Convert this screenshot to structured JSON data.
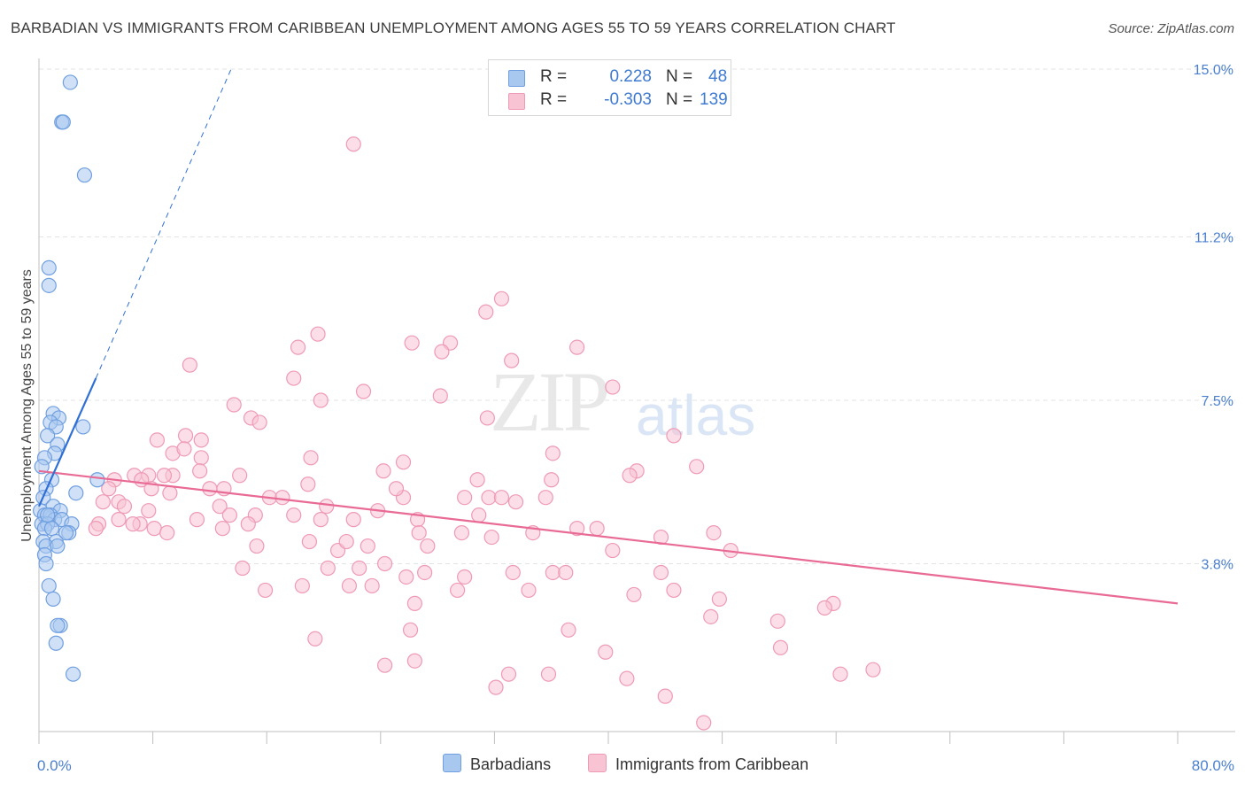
{
  "title": "BARBADIAN VS IMMIGRANTS FROM CARIBBEAN UNEMPLOYMENT AMONG AGES 55 TO 59 YEARS CORRELATION CHART",
  "source": "Source: ZipAtlas.com",
  "watermark": {
    "zip": "ZIP",
    "atlas": "atlas"
  },
  "legend": {
    "r_label": "R =",
    "n_label": "N =",
    "series": [
      {
        "r": "0.228",
        "n": "48"
      },
      {
        "r": "-0.303",
        "n": "139"
      }
    ]
  },
  "colors": {
    "barbadians_fill": "#a9c8f0",
    "barbadians_stroke": "#6f9fe0",
    "barbadians_line": "#2f6fd6",
    "caribbean_fill": "#f8c3d3",
    "caribbean_stroke": "#ef9ab5",
    "caribbean_line": "#e86a95",
    "tick": "#4a7fd0",
    "grid": "#e3e3e3"
  },
  "chart_data": {
    "type": "scatter",
    "title": "BARBADIAN VS IMMIGRANTS FROM CARIBBEAN UNEMPLOYMENT AMONG AGES 55 TO 59 YEARS CORRELATION CHART",
    "xlabel": "",
    "ylabel": "Unemployment Among Ages 55 to 59 years",
    "xlim": [
      0,
      80
    ],
    "ylim": [
      0,
      15
    ],
    "x_tick_labels": [
      "0.0%",
      "80.0%"
    ],
    "y_ticks": [
      3.8,
      7.5,
      11.2,
      15.0
    ],
    "y_tick_labels": [
      "3.8%",
      "7.5%",
      "11.2%",
      "15.0%"
    ],
    "grid": true,
    "legend_position": "top-center",
    "series": [
      {
        "name": "Barbadians",
        "r": 0.228,
        "n": 48,
        "trend": {
          "x": [
            0.0,
            4.0
          ],
          "y": [
            5.1,
            8.0
          ]
        },
        "trend_extension": {
          "x": [
            4.0,
            13.5
          ],
          "y": [
            8.0,
            15.0
          ]
        },
        "points": [
          [
            2.2,
            14.7
          ],
          [
            1.6,
            13.8
          ],
          [
            1.7,
            13.8
          ],
          [
            3.2,
            12.6
          ],
          [
            0.7,
            10.5
          ],
          [
            0.7,
            10.1
          ],
          [
            1.0,
            7.2
          ],
          [
            1.4,
            7.1
          ],
          [
            0.8,
            7.0
          ],
          [
            1.2,
            6.9
          ],
          [
            3.1,
            6.9
          ],
          [
            0.6,
            6.7
          ],
          [
            1.3,
            6.5
          ],
          [
            1.1,
            6.3
          ],
          [
            0.4,
            6.2
          ],
          [
            0.2,
            6.0
          ],
          [
            0.9,
            5.7
          ],
          [
            4.1,
            5.7
          ],
          [
            0.5,
            5.5
          ],
          [
            0.3,
            5.3
          ],
          [
            2.6,
            5.4
          ],
          [
            1.0,
            5.1
          ],
          [
            1.5,
            5.0
          ],
          [
            0.1,
            5.0
          ],
          [
            0.4,
            4.9
          ],
          [
            0.8,
            4.9
          ],
          [
            1.1,
            4.8
          ],
          [
            1.6,
            4.8
          ],
          [
            0.2,
            4.7
          ],
          [
            0.6,
            4.7
          ],
          [
            2.3,
            4.7
          ],
          [
            0.4,
            4.6
          ],
          [
            0.9,
            4.6
          ],
          [
            2.1,
            4.5
          ],
          [
            1.9,
            4.5
          ],
          [
            0.3,
            4.3
          ],
          [
            1.2,
            4.3
          ],
          [
            0.5,
            4.2
          ],
          [
            1.3,
            4.2
          ],
          [
            0.4,
            4.0
          ],
          [
            0.5,
            3.8
          ],
          [
            0.7,
            3.3
          ],
          [
            1.0,
            3.0
          ],
          [
            1.5,
            2.4
          ],
          [
            1.3,
            2.4
          ],
          [
            1.2,
            2.0
          ],
          [
            2.4,
            1.3
          ],
          [
            0.6,
            4.9
          ]
        ]
      },
      {
        "name": "Immigrants from Caribbean",
        "r": -0.303,
        "n": 139,
        "trend": {
          "x": [
            0.0,
            80.0
          ],
          "y": [
            5.9,
            2.9
          ]
        },
        "points": [
          [
            22.1,
            13.3
          ],
          [
            31.4,
            9.5
          ],
          [
            32.5,
            9.8
          ],
          [
            19.6,
            9.0
          ],
          [
            18.2,
            8.7
          ],
          [
            26.2,
            8.8
          ],
          [
            28.9,
            8.8
          ],
          [
            28.3,
            8.6
          ],
          [
            33.2,
            8.4
          ],
          [
            37.8,
            8.7
          ],
          [
            10.6,
            8.3
          ],
          [
            17.9,
            8.0
          ],
          [
            22.8,
            7.7
          ],
          [
            28.2,
            7.6
          ],
          [
            19.8,
            7.5
          ],
          [
            13.7,
            7.4
          ],
          [
            14.9,
            7.1
          ],
          [
            15.5,
            7.0
          ],
          [
            31.5,
            7.1
          ],
          [
            40.3,
            7.8
          ],
          [
            10.3,
            6.7
          ],
          [
            11.4,
            6.6
          ],
          [
            8.3,
            6.6
          ],
          [
            9.4,
            6.3
          ],
          [
            10.2,
            6.4
          ],
          [
            11.4,
            6.2
          ],
          [
            19.1,
            6.2
          ],
          [
            24.2,
            5.9
          ],
          [
            25.6,
            6.1
          ],
          [
            36.1,
            6.3
          ],
          [
            42.0,
            5.9
          ],
          [
            44.6,
            6.7
          ],
          [
            46.2,
            6.0
          ],
          [
            9.4,
            5.8
          ],
          [
            6.7,
            5.8
          ],
          [
            7.7,
            5.8
          ],
          [
            11.3,
            5.9
          ],
          [
            14.1,
            5.8
          ],
          [
            5.3,
            5.7
          ],
          [
            8.8,
            5.8
          ],
          [
            7.2,
            5.7
          ],
          [
            30.8,
            5.7
          ],
          [
            36.0,
            5.7
          ],
          [
            41.5,
            5.8
          ],
          [
            4.9,
            5.5
          ],
          [
            7.9,
            5.5
          ],
          [
            9.2,
            5.4
          ],
          [
            12.0,
            5.5
          ],
          [
            13.0,
            5.5
          ],
          [
            16.2,
            5.3
          ],
          [
            17.1,
            5.3
          ],
          [
            18.9,
            5.6
          ],
          [
            25.6,
            5.3
          ],
          [
            25.1,
            5.5
          ],
          [
            29.9,
            5.3
          ],
          [
            31.6,
            5.3
          ],
          [
            32.5,
            5.3
          ],
          [
            33.5,
            5.2
          ],
          [
            35.6,
            5.3
          ],
          [
            4.5,
            5.2
          ],
          [
            5.6,
            5.2
          ],
          [
            6.0,
            5.1
          ],
          [
            7.7,
            5.0
          ],
          [
            12.7,
            5.1
          ],
          [
            15.2,
            4.9
          ],
          [
            17.9,
            4.9
          ],
          [
            20.2,
            5.1
          ],
          [
            23.8,
            5.0
          ],
          [
            26.6,
            4.8
          ],
          [
            30.9,
            4.9
          ],
          [
            13.4,
            4.9
          ],
          [
            5.6,
            4.8
          ],
          [
            7.1,
            4.7
          ],
          [
            8.1,
            4.6
          ],
          [
            9.0,
            4.5
          ],
          [
            11.1,
            4.8
          ],
          [
            12.9,
            4.6
          ],
          [
            14.7,
            4.7
          ],
          [
            19.8,
            4.8
          ],
          [
            22.1,
            4.8
          ],
          [
            26.7,
            4.5
          ],
          [
            29.7,
            4.5
          ],
          [
            31.8,
            4.4
          ],
          [
            34.7,
            4.5
          ],
          [
            37.8,
            4.6
          ],
          [
            39.2,
            4.6
          ],
          [
            47.4,
            4.5
          ],
          [
            6.6,
            4.7
          ],
          [
            4.2,
            4.7
          ],
          [
            4.0,
            4.6
          ],
          [
            15.3,
            4.2
          ],
          [
            19.0,
            4.3
          ],
          [
            21.0,
            4.1
          ],
          [
            21.6,
            4.3
          ],
          [
            23.1,
            4.2
          ],
          [
            27.3,
            4.2
          ],
          [
            40.3,
            4.1
          ],
          [
            43.7,
            4.4
          ],
          [
            48.6,
            4.1
          ],
          [
            14.3,
            3.7
          ],
          [
            20.3,
            3.7
          ],
          [
            22.5,
            3.7
          ],
          [
            24.3,
            3.8
          ],
          [
            25.8,
            3.5
          ],
          [
            27.1,
            3.6
          ],
          [
            29.9,
            3.5
          ],
          [
            33.3,
            3.6
          ],
          [
            36.1,
            3.6
          ],
          [
            37.0,
            3.6
          ],
          [
            43.7,
            3.6
          ],
          [
            15.9,
            3.2
          ],
          [
            18.5,
            3.3
          ],
          [
            21.8,
            3.3
          ],
          [
            23.4,
            3.3
          ],
          [
            26.4,
            2.9
          ],
          [
            29.4,
            3.2
          ],
          [
            34.4,
            3.2
          ],
          [
            41.8,
            3.1
          ],
          [
            44.6,
            3.2
          ],
          [
            47.8,
            3.0
          ],
          [
            55.8,
            2.9
          ],
          [
            47.2,
            2.6
          ],
          [
            51.9,
            2.5
          ],
          [
            19.4,
            2.1
          ],
          [
            26.1,
            2.3
          ],
          [
            37.2,
            2.3
          ],
          [
            39.8,
            1.8
          ],
          [
            52.1,
            1.9
          ],
          [
            55.2,
            2.8
          ],
          [
            26.4,
            1.6
          ],
          [
            24.3,
            1.5
          ],
          [
            33.0,
            1.3
          ],
          [
            35.8,
            1.3
          ],
          [
            41.3,
            1.2
          ],
          [
            56.3,
            1.3
          ],
          [
            58.6,
            1.4
          ],
          [
            32.1,
            1.0
          ],
          [
            44.0,
            0.8
          ],
          [
            46.7,
            0.2
          ]
        ]
      }
    ]
  }
}
